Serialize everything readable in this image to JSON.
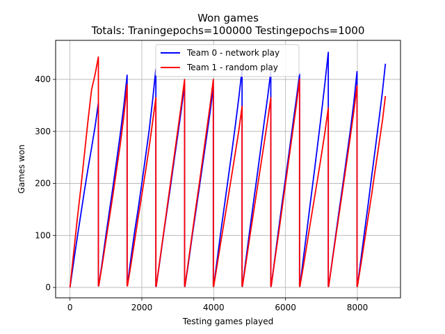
{
  "chart_data": {
    "type": "line",
    "title": "Won games",
    "subtitle": "Totals: Traningepochs=100000 Testingepochs=1000",
    "xlabel": "Testing games played",
    "ylabel": "Games won",
    "xlim": [
      -400,
      9200
    ],
    "ylim": [
      -20,
      475
    ],
    "xticks": [
      0,
      2000,
      4000,
      6000,
      8000
    ],
    "yticks": [
      0,
      100,
      200,
      300,
      400
    ],
    "grid": true,
    "legend_position": "top-center",
    "series": [
      {
        "name": "Team 0 - network play",
        "color": "#0000ff",
        "segments": [
          {
            "x": [
              0,
              100,
              200,
              300,
              400,
              500,
              600,
              700,
              790
            ],
            "y": [
              0,
              48,
              95,
              140,
              185,
              228,
              268,
              310,
              355
            ]
          },
          {
            "x": [
              800,
              900,
              1000,
              1100,
              1200,
              1300,
              1400,
              1500,
              1590
            ],
            "y": [
              3,
              50,
              100,
              148,
              195,
              245,
              295,
              350,
              408
            ]
          },
          {
            "x": [
              1600,
              1700,
              1800,
              1900,
              2000,
              2100,
              2200,
              2300,
              2390
            ],
            "y": [
              5,
              58,
              108,
              152,
              200,
              250,
              300,
              360,
              420
            ]
          },
          {
            "x": [
              2400,
              2500,
              2600,
              2700,
              2800,
              2900,
              3000,
              3100,
              3190
            ],
            "y": [
              2,
              50,
              100,
              148,
              195,
              245,
              293,
              342,
              390
            ]
          },
          {
            "x": [
              3200,
              3300,
              3400,
              3500,
              3600,
              3700,
              3800,
              3900,
              3990
            ],
            "y": [
              2,
              48,
              98,
              145,
              192,
              240,
              288,
              337,
              385
            ]
          },
          {
            "x": [
              4000,
              4100,
              4200,
              4300,
              4400,
              4500,
              4600,
              4700,
              4790
            ],
            "y": [
              2,
              55,
              108,
              158,
              208,
              258,
              310,
              365,
              420
            ]
          },
          {
            "x": [
              4800,
              4900,
              5000,
              5100,
              5200,
              5300,
              5400,
              5500,
              5590
            ],
            "y": [
              2,
              55,
              108,
              160,
              210,
              262,
              315,
              365,
              415
            ]
          },
          {
            "x": [
              5600,
              5700,
              5800,
              5900,
              6000,
              6100,
              6200,
              6300,
              6390
            ],
            "y": [
              2,
              55,
              108,
              160,
              210,
              260,
              312,
              362,
              410
            ]
          },
          {
            "x": [
              6400,
              6500,
              6600,
              6700,
              6800,
              6900,
              7000,
              7100,
              7190
            ],
            "y": [
              2,
              58,
              112,
              168,
              222,
              278,
              335,
              395,
              452
            ]
          },
          {
            "x": [
              7200,
              7300,
              7400,
              7500,
              7600,
              7700,
              7800,
              7900,
              7990
            ],
            "y": [
              2,
              52,
              102,
              152,
              200,
              250,
              300,
              355,
              415
            ]
          },
          {
            "x": [
              8000,
              8100,
              8200,
              8300,
              8400,
              8500,
              8600,
              8700,
              8780
            ],
            "y": [
              2,
              55,
              108,
              160,
              215,
              268,
              322,
              378,
              430
            ]
          }
        ]
      },
      {
        "name": "Team 1 - random play",
        "color": "#ff0000",
        "segments": [
          {
            "x": [
              0,
              100,
              200,
              300,
              400,
              500,
              600,
              700,
              790
            ],
            "y": [
              0,
              65,
              130,
              190,
              255,
              320,
              380,
              410,
              443
            ]
          },
          {
            "x": [
              800,
              900,
              1000,
              1100,
              1200,
              1300,
              1400,
              1500,
              1590
            ],
            "y": [
              3,
              45,
              90,
              135,
              180,
              228,
              275,
              330,
              390
            ]
          },
          {
            "x": [
              1600,
              1700,
              1800,
              1900,
              2000,
              2100,
              2200,
              2300,
              2390
            ],
            "y": [
              3,
              45,
              90,
              135,
              178,
              222,
              268,
              318,
              365
            ]
          },
          {
            "x": [
              2400,
              2500,
              2600,
              2700,
              2800,
              2900,
              3000,
              3100,
              3190
            ],
            "y": [
              2,
              52,
              102,
              152,
              202,
              252,
              302,
              352,
              400
            ]
          },
          {
            "x": [
              3200,
              3300,
              3400,
              3500,
              3600,
              3700,
              3800,
              3900,
              3990
            ],
            "y": [
              2,
              52,
              102,
              152,
              200,
              250,
              300,
              350,
              400
            ]
          },
          {
            "x": [
              4000,
              4100,
              4200,
              4300,
              4400,
              4500,
              4600,
              4700,
              4790
            ],
            "y": [
              2,
              45,
              88,
              130,
              172,
              215,
              258,
              302,
              348
            ]
          },
          {
            "x": [
              4800,
              4900,
              5000,
              5100,
              5200,
              5300,
              5400,
              5500,
              5590
            ],
            "y": [
              2,
              48,
              95,
              140,
              185,
              230,
              275,
              320,
              365
            ]
          },
          {
            "x": [
              5600,
              5700,
              5800,
              5900,
              6000,
              6100,
              6200,
              6300,
              6390
            ],
            "y": [
              2,
              52,
              100,
              150,
              200,
              250,
              300,
              350,
              400
            ]
          },
          {
            "x": [
              6400,
              6500,
              6600,
              6700,
              6800,
              6900,
              7000,
              7100,
              7190
            ],
            "y": [
              2,
              42,
              85,
              128,
              170,
              212,
              255,
              300,
              345
            ]
          },
          {
            "x": [
              7200,
              7300,
              7400,
              7500,
              7600,
              7700,
              7800,
              7900,
              7990
            ],
            "y": [
              2,
              50,
              98,
              145,
              192,
              240,
              288,
              338,
              388
            ]
          },
          {
            "x": [
              8000,
              8100,
              8200,
              8300,
              8400,
              8500,
              8600,
              8700,
              8780
            ],
            "y": [
              2,
              45,
              90,
              135,
              180,
              228,
              275,
              322,
              368
            ]
          }
        ]
      }
    ]
  }
}
